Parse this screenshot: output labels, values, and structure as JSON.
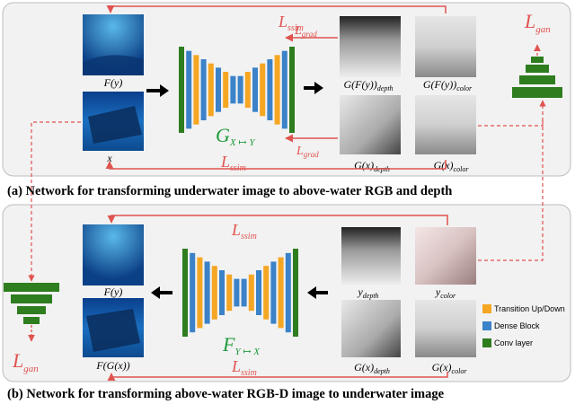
{
  "panel_a": {
    "caption": "(a)  Network for transforming underwater image to above-water RGB and depth",
    "network_main": "G",
    "network_sub": "X ↦ Y",
    "input_top_label_main": "F(y)",
    "input_bottom_label_main": "x",
    "out_top_depth_main": "G(F(y))",
    "out_top_depth_sub": "depth",
    "out_top_color_main": "G(F(y))",
    "out_top_color_sub": "color",
    "out_bot_depth_main": "G(x)",
    "out_bot_depth_sub": "depth",
    "out_bot_color_main": "G(x)",
    "out_bot_color_sub": "color",
    "loss_ssim_top_main": "L",
    "loss_ssim_top_sub": "ssim",
    "loss_grad_top_main": "L",
    "loss_grad_top_sub": "grad",
    "loss_grad_bot_main": "L",
    "loss_grad_bot_sub": "grad",
    "loss_ssim_bot_main": "L",
    "loss_ssim_bot_sub": "ssim",
    "loss_gan_main": "L",
    "loss_gan_sub": "gan"
  },
  "panel_b": {
    "caption": "(b)  Network for transforming above-water RGB-D image to underwater image",
    "network_main": "F",
    "network_sub": "Y ↦ X",
    "out_top_label_main": "F(y)",
    "out_bottom_label_main": "F(G(x))",
    "in_top_depth_main": "y",
    "in_top_depth_sub": "depth",
    "in_top_color_main": "y",
    "in_top_color_sub": "color",
    "in_bot_depth_main": "G(x)",
    "in_bot_depth_sub": "depth",
    "in_bot_color_main": "G(x)",
    "in_bot_color_sub": "color",
    "loss_ssim_top_main": "L",
    "loss_ssim_top_sub": "ssim",
    "loss_ssim_bot_main": "L",
    "loss_ssim_bot_sub": "ssim",
    "loss_gan_main": "L",
    "loss_gan_sub": "gan"
  },
  "legend": {
    "items": [
      {
        "label": "Transition Up/Down",
        "color": "#f5a623"
      },
      {
        "label": "Dense Block",
        "color": "#3b82c8"
      },
      {
        "label": "Conv layer",
        "color": "#2e7d1f"
      }
    ]
  },
  "colors": {
    "loss_red": "#e0534f",
    "green": "#2e7d1f",
    "blue": "#3b82c8",
    "orange": "#f5a623",
    "panel_bg": "#f2f2f2"
  }
}
